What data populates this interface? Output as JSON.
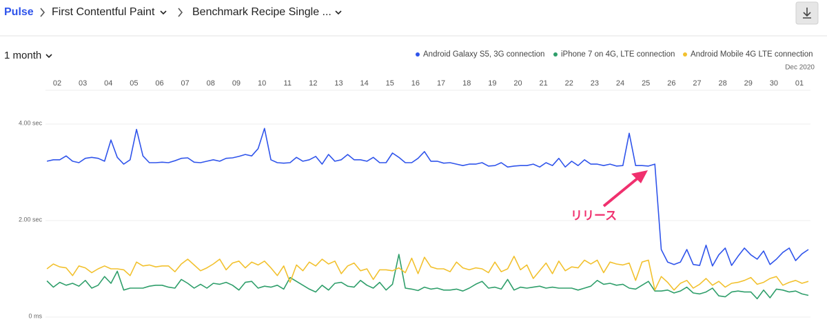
{
  "header": {
    "breadcrumbs": [
      "Pulse",
      "First Contentful Paint",
      "Benchmark Recipe Single ..."
    ]
  },
  "period": "1 month",
  "chart_data": {
    "type": "line",
    "date_label": "Dec 2020",
    "annotation": "リリース",
    "grid": true,
    "xlim": [
      1.5,
      31.5
    ],
    "xticks": [
      {
        "value": 2,
        "label": "02"
      },
      {
        "value": 3,
        "label": "03"
      },
      {
        "value": 4,
        "label": "04"
      },
      {
        "value": 5,
        "label": "05"
      },
      {
        "value": 6,
        "label": "06"
      },
      {
        "value": 7,
        "label": "07"
      },
      {
        "value": 8,
        "label": "08"
      },
      {
        "value": 9,
        "label": "09"
      },
      10,
      11,
      12,
      13,
      14,
      15,
      16,
      17,
      18,
      19,
      20,
      21,
      22,
      23,
      24,
      25,
      26,
      27,
      28,
      29,
      30,
      {
        "value": 31,
        "label": "01"
      }
    ],
    "ylim": [
      0,
      4.6
    ],
    "yticks": [
      {
        "value": 0,
        "label": "0 ms"
      },
      {
        "value": 2,
        "label": "2.00 sec"
      },
      {
        "value": 4,
        "label": "4.00 sec"
      }
    ],
    "x": [
      1.6,
      1.85,
      2.1,
      2.35,
      2.6,
      2.85,
      3.1,
      3.35,
      3.6,
      3.85,
      4.1,
      4.35,
      4.6,
      4.85,
      5.1,
      5.35,
      5.6,
      5.85,
      6.1,
      6.35,
      6.6,
      6.85,
      7.1,
      7.35,
      7.6,
      7.85,
      8.1,
      8.35,
      8.6,
      8.85,
      9.1,
      9.35,
      9.6,
      9.85,
      10.1,
      10.35,
      10.6,
      10.85,
      11.1,
      11.35,
      11.6,
      11.85,
      12.1,
      12.35,
      12.6,
      12.85,
      13.1,
      13.35,
      13.6,
      13.85,
      14.1,
      14.35,
      14.6,
      14.85,
      15.1,
      15.35,
      15.6,
      15.85,
      16.1,
      16.35,
      16.6,
      16.85,
      17.1,
      17.35,
      17.6,
      17.85,
      18.1,
      18.35,
      18.6,
      18.85,
      19.1,
      19.35,
      19.6,
      19.85,
      20.1,
      20.35,
      20.6,
      20.85,
      21.1,
      21.35,
      21.6,
      21.85,
      22.1,
      22.35,
      22.6,
      22.85,
      23.1,
      23.35,
      23.6,
      23.85,
      24.1,
      24.35,
      24.6,
      24.85,
      25.1,
      25.35,
      25.6,
      25.85,
      26.1,
      26.35,
      26.6,
      26.85,
      27.1,
      27.35,
      27.6,
      27.85,
      28.1,
      28.35,
      28.6,
      28.85,
      29.1,
      29.35,
      29.6,
      29.85,
      30.1,
      30.35,
      30.6,
      30.85,
      31.1,
      31.35
    ],
    "series": [
      {
        "name": "Android Galaxy S5, 3G connection",
        "color": "#2f54eb",
        "values": [
          3.23,
          3.26,
          3.26,
          3.34,
          3.23,
          3.2,
          3.29,
          3.31,
          3.29,
          3.23,
          3.67,
          3.31,
          3.17,
          3.26,
          3.89,
          3.34,
          3.2,
          3.2,
          3.21,
          3.2,
          3.24,
          3.29,
          3.3,
          3.21,
          3.2,
          3.23,
          3.26,
          3.23,
          3.29,
          3.3,
          3.33,
          3.37,
          3.34,
          3.49,
          3.91,
          3.26,
          3.2,
          3.19,
          3.2,
          3.31,
          3.23,
          3.26,
          3.33,
          3.17,
          3.37,
          3.23,
          3.26,
          3.37,
          3.26,
          3.26,
          3.23,
          3.31,
          3.2,
          3.2,
          3.4,
          3.31,
          3.2,
          3.2,
          3.29,
          3.43,
          3.23,
          3.23,
          3.19,
          3.2,
          3.17,
          3.14,
          3.17,
          3.17,
          3.2,
          3.13,
          3.14,
          3.2,
          3.11,
          3.13,
          3.14,
          3.14,
          3.17,
          3.11,
          3.2,
          3.14,
          3.29,
          3.11,
          3.23,
          3.14,
          3.26,
          3.17,
          3.17,
          3.14,
          3.17,
          3.13,
          3.14,
          3.81,
          3.14,
          3.14,
          3.13,
          3.17,
          1.4,
          1.14,
          1.09,
          1.14,
          1.4,
          1.09,
          1.07,
          1.49,
          1.06,
          1.29,
          1.43,
          1.07,
          1.26,
          1.43,
          1.29,
          1.2,
          1.37,
          1.09,
          1.2,
          1.34,
          1.43,
          1.17,
          1.31,
          1.4
        ]
      },
      {
        "name": "iPhone 7 on 4G, LTE connection",
        "color": "#2e9e6a",
        "values": [
          0.75,
          0.62,
          0.72,
          0.66,
          0.7,
          0.64,
          0.76,
          0.6,
          0.66,
          0.84,
          0.7,
          0.95,
          0.56,
          0.6,
          0.6,
          0.6,
          0.64,
          0.66,
          0.66,
          0.62,
          0.6,
          0.78,
          0.7,
          0.6,
          0.68,
          0.6,
          0.7,
          0.68,
          0.72,
          0.66,
          0.56,
          0.72,
          0.74,
          0.6,
          0.64,
          0.62,
          0.66,
          0.58,
          0.82,
          0.74,
          0.66,
          0.58,
          0.52,
          0.66,
          0.56,
          0.7,
          0.72,
          0.64,
          0.62,
          0.76,
          0.66,
          0.6,
          0.72,
          0.56,
          0.68,
          1.3,
          0.6,
          0.58,
          0.55,
          0.62,
          0.58,
          0.6,
          0.56,
          0.56,
          0.58,
          0.54,
          0.6,
          0.68,
          0.74,
          0.6,
          0.62,
          0.58,
          0.78,
          0.56,
          0.62,
          0.6,
          0.62,
          0.64,
          0.6,
          0.62,
          0.6,
          0.6,
          0.6,
          0.56,
          0.6,
          0.64,
          0.76,
          0.68,
          0.7,
          0.66,
          0.68,
          0.6,
          0.58,
          0.66,
          0.74,
          0.54,
          0.54,
          0.56,
          0.5,
          0.54,
          0.62,
          0.5,
          0.48,
          0.52,
          0.6,
          0.44,
          0.42,
          0.52,
          0.54,
          0.52,
          0.52,
          0.38,
          0.56,
          0.4,
          0.58,
          0.56,
          0.52,
          0.54,
          0.48,
          0.45
        ]
      },
      {
        "name": "Android Mobile 4G LTE connection",
        "color": "#f2c12e",
        "values": [
          1.0,
          1.1,
          1.04,
          1.02,
          0.86,
          1.06,
          1.02,
          0.92,
          1.0,
          1.06,
          1.0,
          1.0,
          0.98,
          0.86,
          1.14,
          1.06,
          1.08,
          1.04,
          1.06,
          1.06,
          0.94,
          1.1,
          1.2,
          1.08,
          0.96,
          1.02,
          1.1,
          1.2,
          0.98,
          1.12,
          1.16,
          1.02,
          1.14,
          1.08,
          1.16,
          1.02,
          0.86,
          1.06,
          0.72,
          1.08,
          0.96,
          1.14,
          1.06,
          1.2,
          1.1,
          1.16,
          0.9,
          1.06,
          1.12,
          0.96,
          1.0,
          0.78,
          0.98,
          0.98,
          0.96,
          1.02,
          0.92,
          1.22,
          0.9,
          1.24,
          1.04,
          1.0,
          1.0,
          0.94,
          1.14,
          1.02,
          0.98,
          1.02,
          1.0,
          0.92,
          1.14,
          0.94,
          1.0,
          1.26,
          0.98,
          1.08,
          0.8,
          0.96,
          1.12,
          0.9,
          1.16,
          0.96,
          1.04,
          1.02,
          1.18,
          1.1,
          1.18,
          0.92,
          1.14,
          1.1,
          1.08,
          1.12,
          0.76,
          1.14,
          1.18,
          0.56,
          0.84,
          0.72,
          0.56,
          0.7,
          0.76,
          0.6,
          0.68,
          0.8,
          0.66,
          0.74,
          0.62,
          0.7,
          0.72,
          0.76,
          0.82,
          0.68,
          0.72,
          0.8,
          0.84,
          0.66,
          0.72,
          0.76,
          0.7,
          0.74
        ]
      }
    ]
  }
}
